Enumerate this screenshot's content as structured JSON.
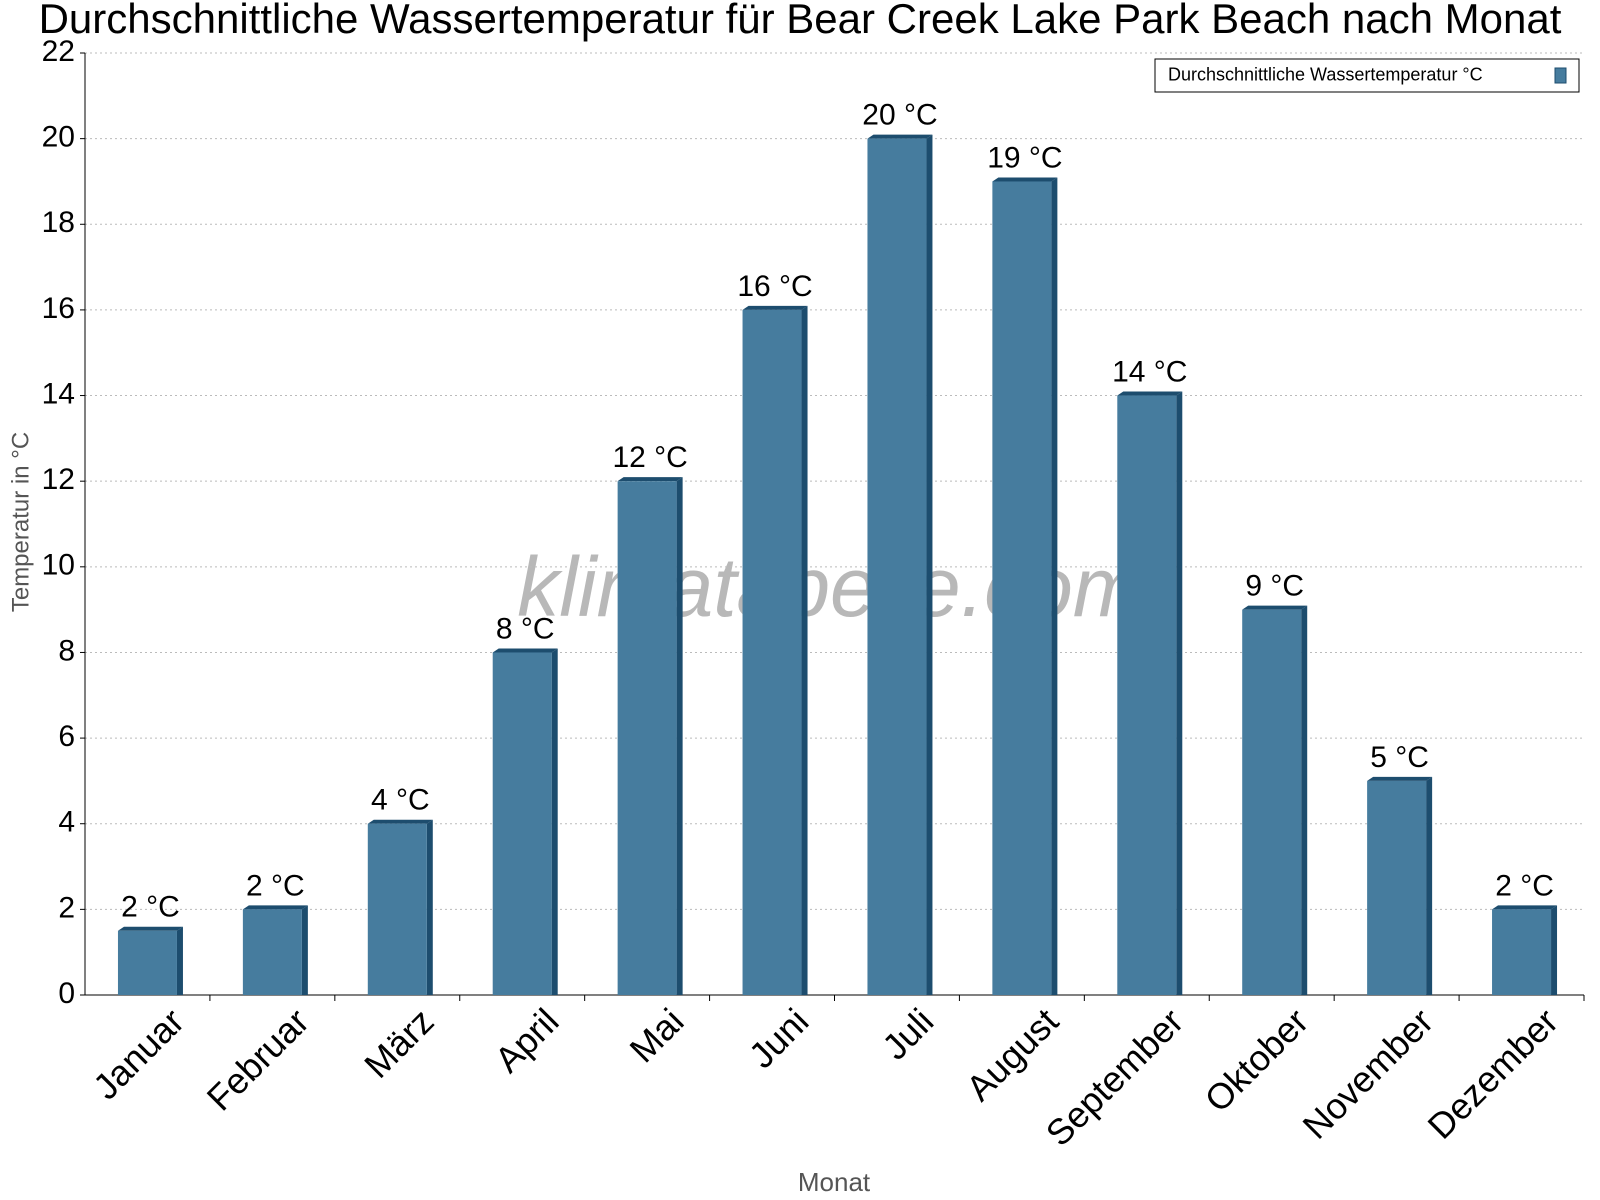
{
  "chart_data": {
    "type": "bar",
    "title": "Durchschnittliche Wassertemperatur für Bear Creek Lake Park Beach nach Monat",
    "x_label": "Monat",
    "y_label": "Temperatur in °C",
    "watermark": "klimatabelle.com",
    "categories": [
      "Januar",
      "Februar",
      "März",
      "April",
      "Mai",
      "Juni",
      "Juli",
      "August",
      "September",
      "Oktober",
      "November",
      "Dezember"
    ],
    "series": [
      {
        "name": "Durchschnittliche Wassertemperatur °C",
        "color": "#467c9e",
        "values": [
          1.5,
          2,
          4,
          8,
          12,
          16,
          20,
          19,
          14,
          9,
          5,
          2
        ],
        "value_labels": [
          "2 °C",
          "2 °C",
          "4 °C",
          "8 °C",
          "12 °C",
          "16 °C",
          "20 °C",
          "19 °C",
          "14 °C",
          "9 °C",
          "5 °C",
          "2 °C"
        ]
      }
    ],
    "ylim": [
      0,
      22
    ],
    "yticks": [
      0,
      2,
      4,
      6,
      8,
      10,
      12,
      14,
      16,
      18,
      20,
      22
    ],
    "grid": true,
    "legend": "upper right"
  }
}
